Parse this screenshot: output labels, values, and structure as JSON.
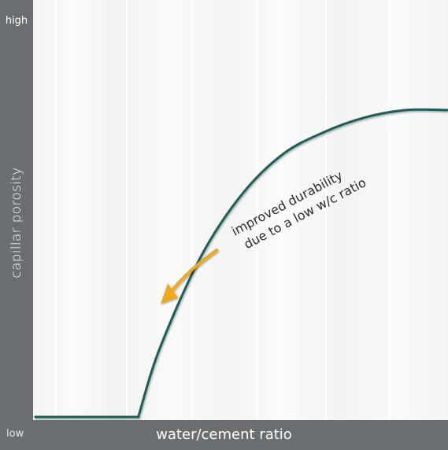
{
  "chart_data": {
    "type": "line",
    "xlabel": "water/cement ratio",
    "ylabel": "capillar porosity",
    "y_high_label": "high",
    "y_low_label": "low",
    "x_range": [
      0,
      1
    ],
    "y_range": [
      0,
      1
    ],
    "grid": false,
    "series": [
      {
        "color": "#1d5e58",
        "x": [
          0.0,
          0.25,
          0.3,
          0.4,
          0.5,
          0.6,
          0.7,
          0.8,
          0.9,
          1.0
        ],
        "y": [
          0.0,
          0.0,
          0.18,
          0.43,
          0.6,
          0.71,
          0.77,
          0.81,
          0.83,
          0.83
        ]
      }
    ],
    "annotations": [
      {
        "line1": "improved durability",
        "line2": "due to a low w/c ratio"
      }
    ],
    "arrow_color": "#f0a81c"
  }
}
